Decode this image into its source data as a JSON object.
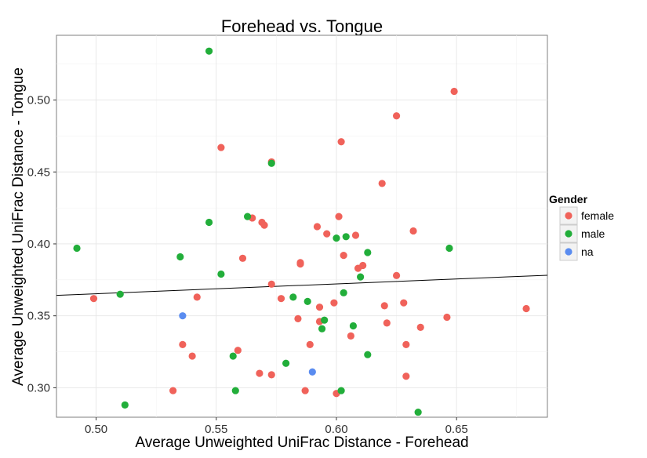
{
  "chart_data": {
    "type": "scatter",
    "title": "Forehead vs. Tongue",
    "xlabel": "Average Unweighted UniFrac Distance - Forehead",
    "ylabel": "Average Unweighted UniFrac Distance - Tongue",
    "xlim": [
      0.4835,
      0.6878
    ],
    "ylim": [
      0.2795,
      0.545
    ],
    "x_ticks": [
      "0.50",
      "0.55",
      "0.60",
      "0.65"
    ],
    "x_tick_values": [
      0.5,
      0.55,
      0.6,
      0.65
    ],
    "y_ticks": [
      "0.30",
      "0.35",
      "0.40",
      "0.45",
      "0.50"
    ],
    "y_tick_values": [
      0.3,
      0.35,
      0.4,
      0.45,
      0.5
    ],
    "grid": true,
    "legend_position": "right",
    "legend": {
      "title": "Gender",
      "entries": [
        {
          "name": "female",
          "color": "#F0625A"
        },
        {
          "name": "male",
          "color": "#22AE3A"
        },
        {
          "name": "na",
          "color": "#5A8CF0"
        }
      ]
    },
    "regression_line": {
      "x": [
        0.4835,
        0.6878
      ],
      "y": [
        0.3642,
        0.3782
      ],
      "color": "#000000"
    },
    "series": [
      {
        "name": "female",
        "color": "#F0625A",
        "points": [
          [
            0.649,
            0.506
          ],
          [
            0.625,
            0.489
          ],
          [
            0.602,
            0.471
          ],
          [
            0.552,
            0.467
          ],
          [
            0.573,
            0.457
          ],
          [
            0.619,
            0.442
          ],
          [
            0.601,
            0.419
          ],
          [
            0.565,
            0.418
          ],
          [
            0.569,
            0.415
          ],
          [
            0.57,
            0.413
          ],
          [
            0.592,
            0.412
          ],
          [
            0.632,
            0.409
          ],
          [
            0.596,
            0.407
          ],
          [
            0.608,
            0.406
          ],
          [
            0.603,
            0.392
          ],
          [
            0.561,
            0.39
          ],
          [
            0.585,
            0.387
          ],
          [
            0.585,
            0.386
          ],
          [
            0.611,
            0.385
          ],
          [
            0.609,
            0.383
          ],
          [
            0.625,
            0.378
          ],
          [
            0.573,
            0.372
          ],
          [
            0.499,
            0.362
          ],
          [
            0.542,
            0.363
          ],
          [
            0.577,
            0.362
          ],
          [
            0.599,
            0.359
          ],
          [
            0.628,
            0.359
          ],
          [
            0.62,
            0.357
          ],
          [
            0.593,
            0.356
          ],
          [
            0.679,
            0.355
          ],
          [
            0.646,
            0.349
          ],
          [
            0.584,
            0.348
          ],
          [
            0.593,
            0.346
          ],
          [
            0.621,
            0.345
          ],
          [
            0.635,
            0.342
          ],
          [
            0.606,
            0.336
          ],
          [
            0.536,
            0.33
          ],
          [
            0.589,
            0.33
          ],
          [
            0.629,
            0.33
          ],
          [
            0.559,
            0.326
          ],
          [
            0.54,
            0.322
          ],
          [
            0.568,
            0.31
          ],
          [
            0.573,
            0.309
          ],
          [
            0.629,
            0.308
          ],
          [
            0.532,
            0.298
          ],
          [
            0.587,
            0.298
          ],
          [
            0.6,
            0.296
          ]
        ]
      },
      {
        "name": "male",
        "color": "#22AE3A",
        "points": [
          [
            0.547,
            0.534
          ],
          [
            0.573,
            0.456
          ],
          [
            0.563,
            0.419
          ],
          [
            0.547,
            0.415
          ],
          [
            0.604,
            0.405
          ],
          [
            0.6,
            0.404
          ],
          [
            0.492,
            0.397
          ],
          [
            0.647,
            0.397
          ],
          [
            0.613,
            0.394
          ],
          [
            0.535,
            0.391
          ],
          [
            0.552,
            0.379
          ],
          [
            0.61,
            0.377
          ],
          [
            0.51,
            0.365
          ],
          [
            0.603,
            0.366
          ],
          [
            0.582,
            0.363
          ],
          [
            0.588,
            0.36
          ],
          [
            0.595,
            0.347
          ],
          [
            0.607,
            0.343
          ],
          [
            0.594,
            0.341
          ],
          [
            0.613,
            0.323
          ],
          [
            0.557,
            0.322
          ],
          [
            0.579,
            0.317
          ],
          [
            0.558,
            0.298
          ],
          [
            0.602,
            0.298
          ],
          [
            0.512,
            0.288
          ],
          [
            0.634,
            0.283
          ]
        ]
      },
      {
        "name": "na",
        "color": "#5A8CF0",
        "points": [
          [
            0.536,
            0.35
          ],
          [
            0.59,
            0.311
          ]
        ]
      }
    ]
  }
}
